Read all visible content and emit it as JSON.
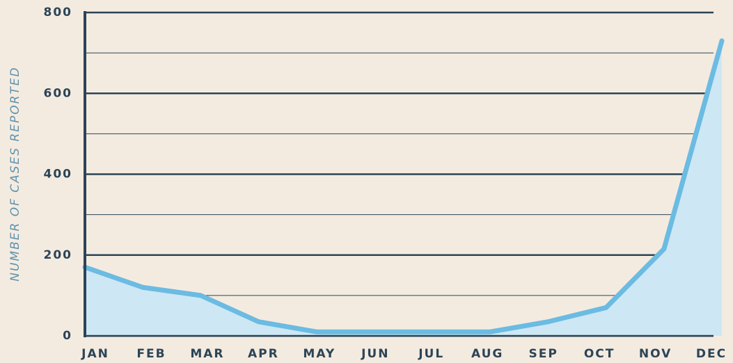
{
  "chart_data": {
    "type": "line",
    "y_label": "NUMBER OF CASES REPORTED",
    "categories": [
      "JAN",
      "FEB",
      "MAR",
      "APR",
      "MAY",
      "JUN",
      "JUL",
      "AUG",
      "SEP",
      "OCT",
      "NOV",
      "DEC"
    ],
    "series": [
      {
        "color": "#6bbbe2",
        "values": [
          170,
          120,
          100,
          35,
          10,
          10,
          10,
          10,
          35,
          70,
          215,
          730
        ]
      }
    ],
    "area_color": "#cde7f4",
    "ylim": [
      0,
      800
    ],
    "yticks": [
      0,
      200,
      400,
      600,
      800
    ],
    "minor_yticks": [
      100,
      300,
      500,
      700
    ],
    "grid": true
  }
}
